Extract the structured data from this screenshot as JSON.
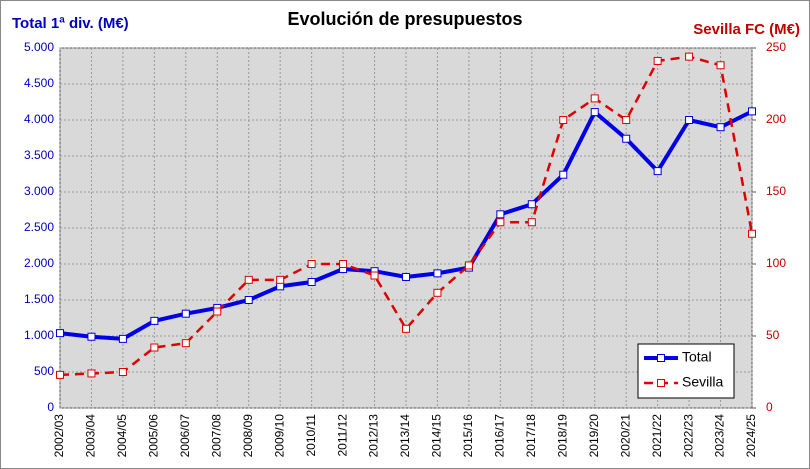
{
  "chart_data": {
    "type": "line",
    "title": "Evolución de presupuestos",
    "ylabel": "Total 1ª div. (M€)",
    "y2label": "Sevilla FC (M€)",
    "categories": [
      "2002/03",
      "2003/04",
      "2004/05",
      "2005/06",
      "2006/07",
      "2007/08",
      "2008/09",
      "2009/10",
      "2010/11",
      "2011/12",
      "2012/13",
      "2013/14",
      "2014/15",
      "2015/16",
      "2016/17",
      "2017/18",
      "2018/19",
      "2019/20",
      "2020/21",
      "2021/22",
      "2022/23",
      "2023/24",
      "2024/25"
    ],
    "series": [
      {
        "name": "Total",
        "color": "#0000e6",
        "dashed": false,
        "values": [
          1040,
          990,
          960,
          1210,
          1310,
          1390,
          1500,
          1690,
          1750,
          1930,
          1900,
          1820,
          1870,
          1950,
          2690,
          2830,
          3240,
          4110,
          3740,
          3290,
          4000,
          3900,
          4120
        ]
      },
      {
        "name": "Sevilla",
        "color": "#e00000",
        "dashed": true,
        "axis": "y2",
        "values": [
          23,
          24,
          25,
          42,
          45,
          67,
          89,
          89,
          100,
          100,
          92,
          55,
          80,
          99,
          129,
          129,
          200,
          215,
          200,
          241,
          244,
          238,
          121
        ]
      }
    ],
    "ylim": [
      0,
      5000
    ],
    "yticks": [
      0,
      500,
      {
        "value": 1000,
        "label": "1.000"
      },
      {
        "value": 1500,
        "label": "1.500"
      },
      {
        "value": 2000,
        "label": "2.000"
      },
      {
        "value": 2500,
        "label": "2.500"
      },
      {
        "value": 3000,
        "label": "3.000"
      },
      {
        "value": 3500,
        "label": "3.500"
      },
      {
        "value": 4000,
        "label": "4.000"
      },
      {
        "value": 4500,
        "label": "4.500"
      },
      {
        "value": 5000,
        "label": "5.000"
      }
    ],
    "y2lim": [
      0,
      250
    ],
    "y2ticks": [
      0,
      50,
      100,
      150,
      200,
      250
    ],
    "grid": true,
    "legend": "bottom-right"
  }
}
